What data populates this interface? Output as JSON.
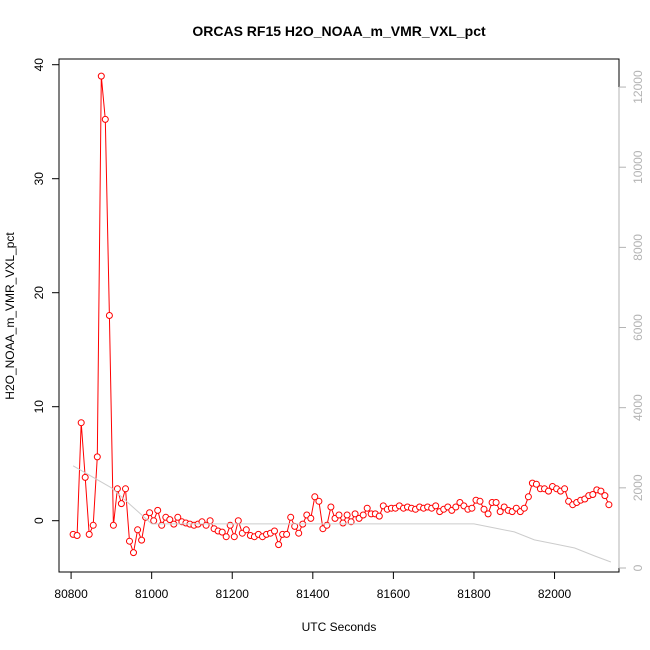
{
  "chart_data": {
    "type": "line",
    "title": "ORCAS RF15 H2O_NOAA_m_VMR_VXL_pct",
    "xlabel": "UTC Seconds",
    "ylabel": "H2O_NOAA_m_VMR_VXL_pct",
    "xlim": [
      80770,
      82160
    ],
    "ylim": [
      -4.5,
      40.5
    ],
    "y2lim": [
      -100,
      12700
    ],
    "x_ticks": [
      80800,
      81000,
      81200,
      81400,
      81600,
      81800,
      82000
    ],
    "y_ticks": [
      0,
      10,
      20,
      30,
      40
    ],
    "y2_ticks": [
      0,
      2000,
      4000,
      6000,
      8000,
      10000,
      12000
    ],
    "grid": false,
    "series": [
      {
        "color": "#ff0000",
        "axis": "left",
        "markers": "open-circle",
        "x": [
          80805,
          80815,
          80825,
          80835,
          80845,
          80855,
          80865,
          80875,
          80885,
          80895,
          80905,
          80915,
          80925,
          80935,
          80945,
          80955,
          80965,
          80975,
          80985,
          80995,
          81005,
          81015,
          81025,
          81035,
          81045,
          81055,
          81065,
          81075,
          81085,
          81095,
          81105,
          81115,
          81125,
          81135,
          81145,
          81155,
          81165,
          81175,
          81185,
          81195,
          81205,
          81215,
          81225,
          81235,
          81245,
          81255,
          81265,
          81275,
          81285,
          81295,
          81305,
          81315,
          81325,
          81335,
          81345,
          81355,
          81365,
          81375,
          81385,
          81395,
          81405,
          81415,
          81425,
          81435,
          81445,
          81455,
          81465,
          81475,
          81485,
          81495,
          81505,
          81515,
          81525,
          81535,
          81545,
          81555,
          81565,
          81575,
          81585,
          81595,
          81605,
          81615,
          81625,
          81635,
          81645,
          81655,
          81665,
          81675,
          81685,
          81695,
          81705,
          81715,
          81725,
          81735,
          81745,
          81755,
          81765,
          81775,
          81785,
          81795,
          81805,
          81815,
          81825,
          81835,
          81845,
          81855,
          81865,
          81875,
          81885,
          81895,
          81905,
          81915,
          81925,
          81935,
          81945,
          81955,
          81965,
          81975,
          81985,
          81995,
          82005,
          82015,
          82025,
          82035,
          82045,
          82055,
          82065,
          82075,
          82085,
          82095,
          82105,
          82115,
          82125,
          82135
        ],
        "values": [
          -1.2,
          -1.3,
          8.6,
          3.8,
          -1.2,
          -0.4,
          5.6,
          39.0,
          35.2,
          18.0,
          -0.4,
          2.8,
          1.5,
          2.8,
          -1.8,
          -2.8,
          -0.8,
          -1.7,
          0.3,
          0.7,
          0.0,
          0.9,
          -0.4,
          0.3,
          0.1,
          -0.3,
          0.3,
          -0.1,
          -0.2,
          -0.3,
          -0.4,
          -0.3,
          -0.1,
          -0.4,
          0.0,
          -0.7,
          -0.9,
          -1.0,
          -1.4,
          -0.4,
          -1.4,
          0.0,
          -1.1,
          -0.8,
          -1.3,
          -1.4,
          -1.2,
          -1.4,
          -1.2,
          -1.1,
          -0.9,
          -2.1,
          -1.2,
          -1.2,
          0.3,
          -0.5,
          -1.1,
          -0.3,
          0.5,
          0.2,
          2.1,
          1.7,
          -0.7,
          -0.4,
          1.2,
          0.2,
          0.5,
          -0.2,
          0.5,
          -0.1,
          0.6,
          0.2,
          0.5,
          1.1,
          0.6,
          0.6,
          0.4,
          1.3,
          1.0,
          1.1,
          1.1,
          1.3,
          1.1,
          1.2,
          1.1,
          1.0,
          1.2,
          1.1,
          1.2,
          1.1,
          1.3,
          0.8,
          1.0,
          1.2,
          0.9,
          1.2,
          1.6,
          1.3,
          1.0,
          1.1,
          1.8,
          1.7,
          1.0,
          0.6,
          1.6,
          1.6,
          0.8,
          1.2,
          0.9,
          0.8,
          1.1,
          0.8,
          1.1,
          2.1,
          3.3,
          3.2,
          2.8,
          2.8,
          2.6,
          3.0,
          2.8,
          2.6,
          2.8,
          1.7,
          1.4,
          1.6,
          1.8,
          1.9,
          2.2,
          2.3,
          2.7,
          2.6,
          2.2,
          1.4
        ]
      },
      {
        "color": "#cccccc",
        "axis": "right",
        "markers": "none",
        "x": [
          80805,
          80900,
          81000,
          81100,
          81200,
          81300,
          81400,
          81500,
          81600,
          81700,
          81800,
          81850,
          81900,
          81950,
          82000,
          82050,
          82100,
          82140
        ],
        "values": [
          2550,
          2000,
          1100,
          1100,
          1100,
          1100,
          1100,
          1100,
          1100,
          1100,
          1100,
          1000,
          900,
          700,
          600,
          500,
          300,
          150
        ]
      }
    ]
  }
}
